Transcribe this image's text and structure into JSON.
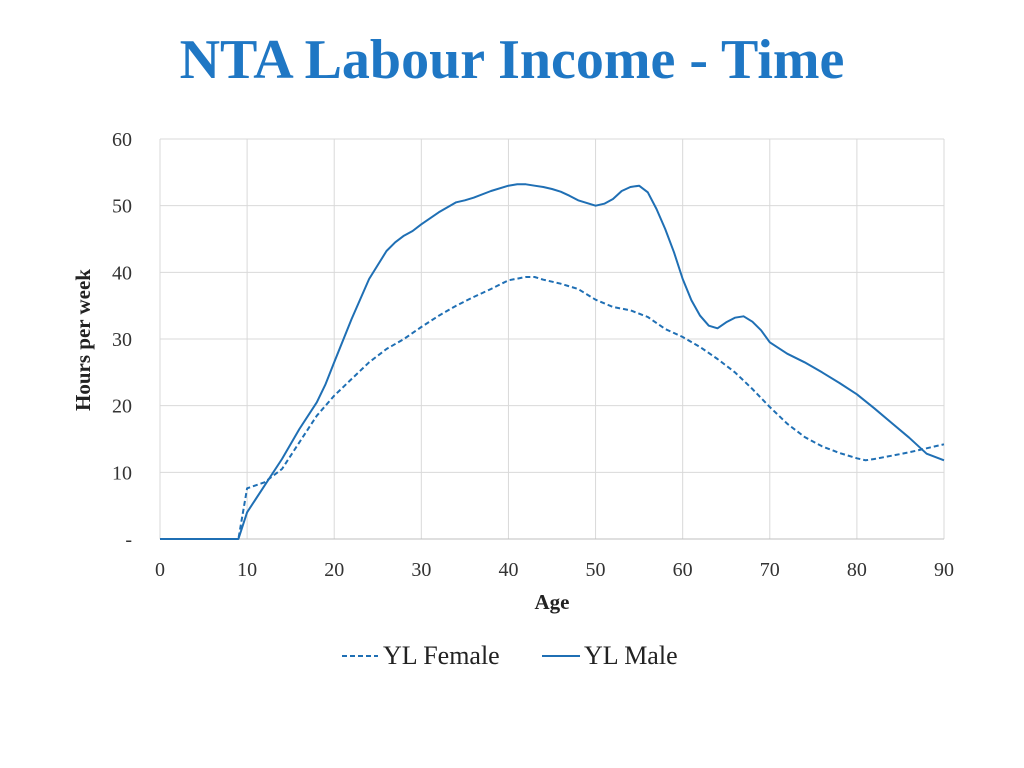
{
  "title": "NTA Labour Income - Time",
  "chart_data": {
    "type": "line",
    "xlabel": "Age",
    "ylabel": "Hours per week",
    "xlim": [
      0,
      90
    ],
    "ylim": [
      0,
      60
    ],
    "xticks": [
      0,
      10,
      20,
      30,
      40,
      50,
      60,
      70,
      80,
      90
    ],
    "xtick_labels": [
      "0",
      "10",
      "20",
      "30",
      "40",
      "50",
      "60",
      "70",
      "80",
      "90"
    ],
    "yticks": [
      0,
      10,
      20,
      30,
      40,
      50,
      60
    ],
    "ytick_labels": [
      "-",
      "10",
      "20",
      "30",
      "40",
      "50",
      "60"
    ],
    "grid": true,
    "legend": "bottom",
    "colors": {
      "line": "#1f6fb4",
      "grid": "#d9d9d9",
      "title": "#1f77c4"
    },
    "series": [
      {
        "name": "YL Female",
        "style": "dashed",
        "x": [
          0,
          9,
          10,
          12,
          14,
          16,
          18,
          20,
          22,
          24,
          26,
          28,
          30,
          32,
          34,
          36,
          38,
          40,
          42,
          43,
          44,
          46,
          48,
          50,
          52,
          54,
          56,
          58,
          60,
          62,
          64,
          66,
          68,
          70,
          72,
          74,
          76,
          78,
          80,
          81,
          82,
          84,
          86,
          88,
          90
        ],
        "y": [
          0,
          0,
          7.6,
          8.5,
          10.5,
          14.5,
          18.5,
          21.5,
          24,
          26.5,
          28.5,
          30,
          31.8,
          33.5,
          35,
          36.3,
          37.5,
          38.8,
          39.3,
          39.3,
          38.9,
          38.3,
          37.5,
          35.9,
          34.8,
          34.3,
          33.3,
          31.5,
          30.3,
          28.8,
          27,
          25,
          22.5,
          19.8,
          17.3,
          15.3,
          13.9,
          12.9,
          12.1,
          11.8,
          12,
          12.5,
          13,
          13.6,
          14.2
        ]
      },
      {
        "name": "YL Male",
        "style": "solid",
        "x": [
          0,
          9,
          10,
          12,
          14,
          16,
          18,
          19,
          20,
          22,
          24,
          26,
          27,
          28,
          29,
          30,
          32,
          34,
          35,
          36,
          38,
          40,
          41,
          42,
          43,
          44,
          45,
          46,
          47,
          48,
          50,
          51,
          52,
          53,
          54,
          55,
          56,
          57,
          58,
          59,
          60,
          61,
          62,
          63,
          64,
          65,
          66,
          67,
          68,
          69,
          70,
          72,
          74,
          76,
          78,
          80,
          82,
          84,
          86,
          88,
          90
        ],
        "y": [
          0,
          0,
          4,
          8,
          12,
          16.5,
          20.5,
          23.2,
          26.5,
          33,
          39,
          43.2,
          44.5,
          45.5,
          46.2,
          47.2,
          49,
          50.5,
          50.8,
          51.2,
          52.2,
          53,
          53.2,
          53.2,
          53,
          52.8,
          52.5,
          52.1,
          51.5,
          50.8,
          50,
          50.3,
          51,
          52.2,
          52.8,
          53,
          52,
          49.5,
          46.5,
          43,
          39,
          35.8,
          33.5,
          32,
          31.6,
          32.5,
          33.2,
          33.4,
          32.6,
          31.3,
          29.5,
          27.8,
          26.5,
          25,
          23.4,
          21.7,
          19.6,
          17.4,
          15.2,
          12.8,
          11.8
        ]
      }
    ]
  }
}
